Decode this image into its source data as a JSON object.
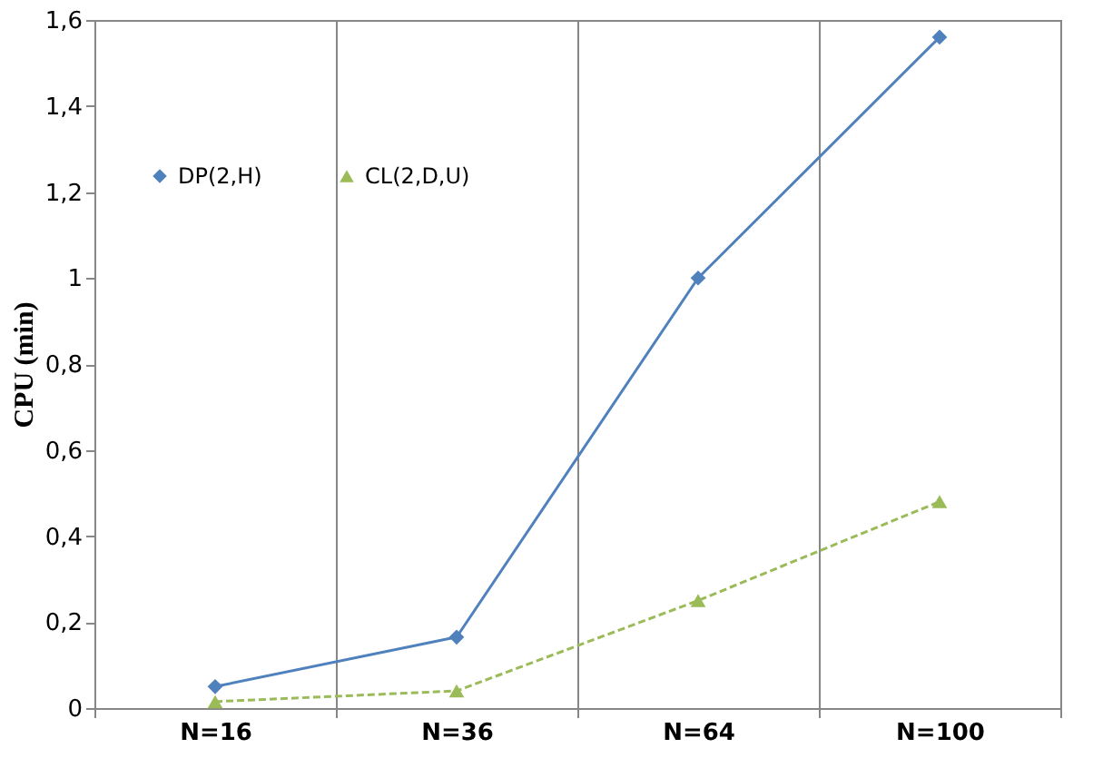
{
  "chart_data": {
    "type": "line",
    "ylabel": "CPU (min)",
    "categories": [
      "N=16",
      "N=36",
      "N=64",
      "N=100"
    ],
    "series": [
      {
        "name": "DP(2,H)",
        "color": "#4f81bd",
        "values": [
          0.05,
          0.165,
          1.0,
          1.56
        ],
        "marker": "diamond",
        "line_style": "solid"
      },
      {
        "name": "CL(2,D,U)",
        "color": "#9bbb59",
        "values": [
          0.015,
          0.04,
          0.25,
          0.48
        ],
        "marker": "triangle",
        "line_style": "dashed"
      }
    ],
    "ylim": [
      0,
      1.6
    ],
    "yticks": [
      0,
      {
        "value": 0.2,
        "label": "0,2"
      },
      {
        "value": 0.4,
        "label": "0,4"
      },
      {
        "value": 0.6,
        "label": "0,6"
      },
      {
        "value": 0.8,
        "label": "0,8"
      },
      1,
      {
        "value": 1.2,
        "label": "1,2"
      },
      {
        "value": 1.4,
        "label": "1,4"
      },
      {
        "value": 1.6,
        "label": "1,6"
      }
    ],
    "grid": "x",
    "legend": "top left"
  }
}
